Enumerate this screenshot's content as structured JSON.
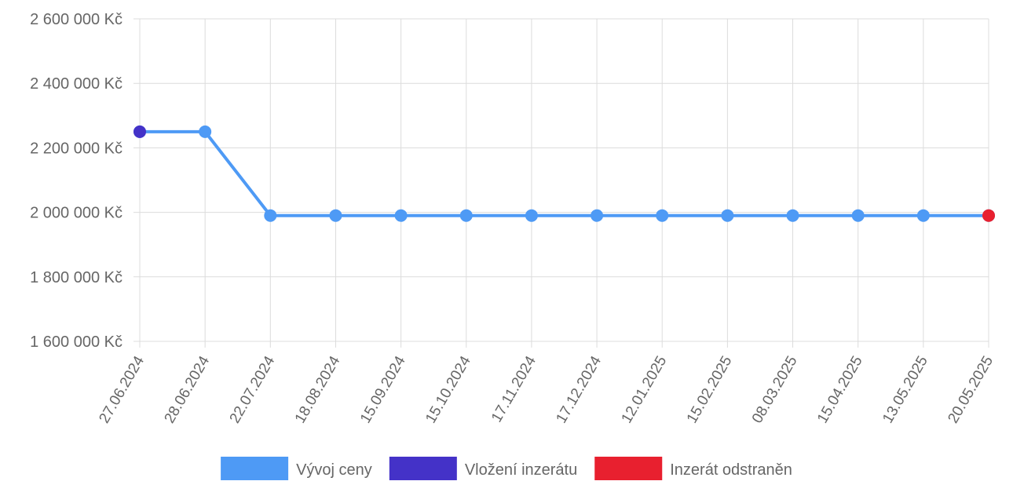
{
  "chart_data": {
    "type": "line",
    "x": [
      "27.06.2024",
      "28.06.2024",
      "22.07.2024",
      "18.08.2024",
      "15.09.2024",
      "15.10.2024",
      "17.11.2024",
      "17.12.2024",
      "12.01.2025",
      "15.02.2025",
      "08.03.2025",
      "15.04.2025",
      "13.05.2025",
      "20.05.2025"
    ],
    "series": [
      {
        "name": "Vývoj ceny",
        "color": "#4e9af5",
        "values": [
          2250000,
          2250000,
          1990000,
          1990000,
          1990000,
          1990000,
          1990000,
          1990000,
          1990000,
          1990000,
          1990000,
          1990000,
          1990000,
          1990000
        ]
      }
    ],
    "markers": [
      {
        "label": "Vložení inzerátu",
        "color": "#4432c8",
        "index": 0
      },
      {
        "label": "Inzerát odstraněn",
        "color": "#e8202f",
        "index": 13
      }
    ],
    "yticks": [
      "1 600 000 Kč",
      "1 800 000 Kč",
      "2 000 000 Kč",
      "2 200 000 Kč",
      "2 400 000 Kč",
      "2 600 000 Kč"
    ],
    "ytick_values": [
      1600000,
      1800000,
      2000000,
      2200000,
      2400000,
      2600000
    ],
    "ylim": [
      1600000,
      2600000
    ],
    "grid": true,
    "legend_position": "bottom",
    "legend": [
      "Vývoj ceny",
      "Vložení inzerátu",
      "Inzerát odstraněn"
    ]
  }
}
